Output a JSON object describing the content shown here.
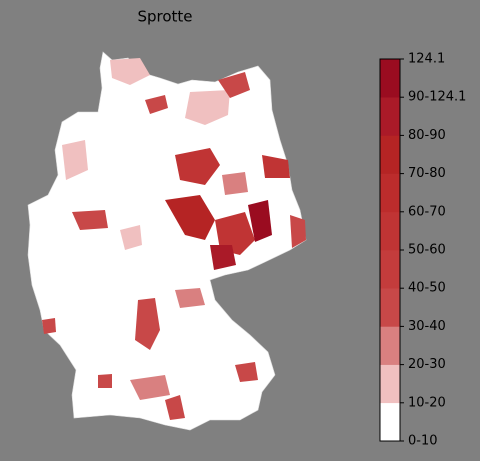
{
  "title": "Sprotte",
  "colorbar": {
    "labels": [
      "0-10",
      "10-20",
      "20-30",
      "30-40",
      "40-50",
      "50-60",
      "60-70",
      "70-80",
      "80-90",
      "90-124.1",
      "124.1"
    ],
    "colors": [
      "#ffffff",
      "#f0c0c0",
      "#d98080",
      "#c84848",
      "#c43c3c",
      "#c03434",
      "#bc2c2c",
      "#b52424",
      "#aa1a28",
      "#9a0c20"
    ]
  }
}
